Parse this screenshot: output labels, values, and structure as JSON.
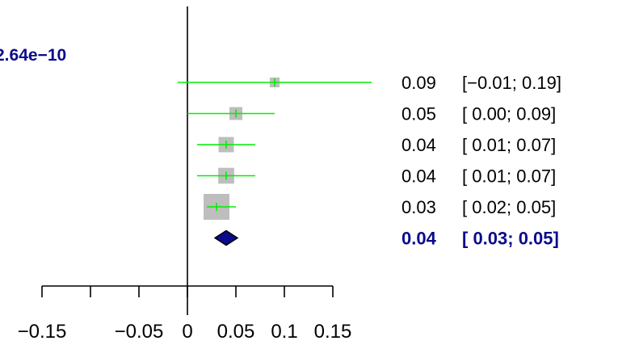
{
  "chart_data": {
    "type": "forest",
    "heterogeneity_text": "2.64e−10",
    "studies": [
      {
        "estimate": 0.09,
        "lower": -0.01,
        "upper": 0.19,
        "weight": 1,
        "est_label": "0.09",
        "ci_label": "[−0.01; 0.19]"
      },
      {
        "estimate": 0.05,
        "lower": 0.0,
        "upper": 0.09,
        "weight": 2,
        "est_label": "0.05",
        "ci_label": "[ 0.00; 0.09]"
      },
      {
        "estimate": 0.04,
        "lower": 0.01,
        "upper": 0.07,
        "weight": 3,
        "est_label": "0.04",
        "ci_label": "[ 0.01; 0.07]"
      },
      {
        "estimate": 0.04,
        "lower": 0.01,
        "upper": 0.07,
        "weight": 3.3,
        "est_label": "0.04",
        "ci_label": "[ 0.01; 0.07]"
      },
      {
        "estimate": 0.03,
        "lower": 0.02,
        "upper": 0.05,
        "weight": 10,
        "est_label": "0.03",
        "ci_label": "[ 0.02; 0.05]"
      }
    ],
    "summary": {
      "estimate": 0.04,
      "lower": 0.03,
      "upper": 0.05,
      "est_label": "0.04",
      "ci_label": "[ 0.03; 0.05]"
    },
    "x_ticks": [
      -0.15,
      -0.1,
      -0.05,
      0,
      0.05,
      0.1,
      0.15
    ],
    "x_tick_labels": [
      "−0.15",
      "",
      "−0.05",
      "0",
      "0.05",
      "0.1",
      "0.15"
    ],
    "reference_line": 0,
    "colors": {
      "ci_line": "#00ee00",
      "box": "#bebebe",
      "summary_fill": "#0b0b8c",
      "summary_text": "#0b0b8c",
      "axis": "#000000"
    }
  }
}
